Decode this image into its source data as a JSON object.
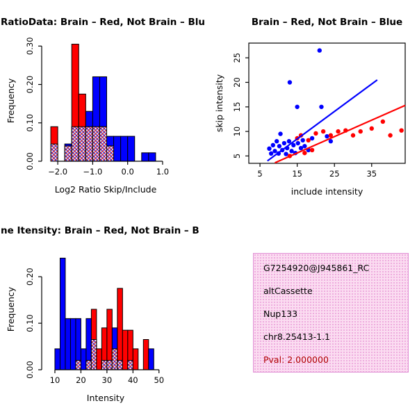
{
  "colors": {
    "brain": "#FF0000",
    "not_brain": "#0000FF",
    "axis": "#000000",
    "pval_text": "#B00000",
    "info_box_bg": "#FBDCF1",
    "info_box_border": "#E08FD4"
  },
  "chart_data": [
    {
      "id": "ratio_hist",
      "type": "histogram",
      "title": "RatioData: Brain – Red, Not Brain – Blu",
      "xlabel": "Log2 Ratio Skip/Include",
      "ylabel": "Frequency",
      "xlim": [
        -2.38,
        1.12
      ],
      "ylim": [
        0,
        0.315
      ],
      "xticks": [
        -2,
        -1,
        0,
        1
      ],
      "xtick_labels": [
        "−2.0",
        "−1.0",
        "0.0",
        "1.0"
      ],
      "yticks": [
        0,
        0.1,
        0.2,
        0.3
      ],
      "ytick_labels": [
        "0.00",
        "0.10",
        "0.20",
        "0.30"
      ],
      "bin_start": -2.2,
      "bin_width": 0.2,
      "series": [
        {
          "name": "Brain",
          "color": "#FF0000",
          "values": [
            0.09,
            0,
            0.04,
            0.305,
            0.175,
            0.09,
            0.09,
            0.09,
            0.04,
            0,
            0,
            0,
            0,
            0,
            0,
            0
          ]
        },
        {
          "name": "Not Brain",
          "color": "#0000FF",
          "values": [
            0.045,
            0,
            0.045,
            0.09,
            0.09,
            0.13,
            0.22,
            0.22,
            0.065,
            0.065,
            0.065,
            0.065,
            0,
            0.022,
            0.022,
            0
          ]
        }
      ],
      "overlap": "crosshatch"
    },
    {
      "id": "intensity_scatter",
      "type": "scatter",
      "title": "Brain – Red, Not Brain – Blue",
      "xlabel": "include intensity",
      "ylabel": "skip intensity",
      "xlim": [
        2,
        44
      ],
      "ylim": [
        3.5,
        28
      ],
      "xticks": [
        5,
        15,
        25,
        35
      ],
      "xtick_labels": [
        "5",
        "15",
        "25",
        "35"
      ],
      "yticks": [
        5,
        10,
        15,
        20,
        25
      ],
      "ytick_labels": [
        "5",
        "10",
        "15",
        "20",
        "25"
      ],
      "series": [
        {
          "name": "Not Brain",
          "color": "#0000FF",
          "points": [
            [
              7.5,
              6.5
            ],
            [
              8,
              5.5
            ],
            [
              8.5,
              7.2
            ],
            [
              9,
              6
            ],
            [
              9.5,
              8
            ],
            [
              10,
              5.5
            ],
            [
              10.2,
              7
            ],
            [
              10.5,
              9.5
            ],
            [
              11,
              6.2
            ],
            [
              11.5,
              7.6
            ],
            [
              12,
              5.4
            ],
            [
              12.3,
              6.6
            ],
            [
              12.8,
              8
            ],
            [
              13,
              20
            ],
            [
              13.5,
              6
            ],
            [
              14,
              7.2
            ],
            [
              14.5,
              5.6
            ],
            [
              15,
              15
            ],
            [
              15.2,
              7.6
            ],
            [
              16,
              6.6
            ],
            [
              16.5,
              8.2
            ],
            [
              17,
              7
            ],
            [
              18,
              6.2
            ],
            [
              19,
              8.6
            ],
            [
              21,
              26.5
            ],
            [
              21.5,
              15
            ],
            [
              23,
              9
            ],
            [
              24,
              8
            ]
          ]
        },
        {
          "name": "Brain",
          "color": "#FF0000",
          "points": [
            [
              13,
              5
            ],
            [
              15,
              8.6
            ],
            [
              16,
              9.2
            ],
            [
              17,
              5.6
            ],
            [
              18,
              8.2
            ],
            [
              19,
              6.2
            ],
            [
              20,
              9.6
            ],
            [
              22,
              10
            ],
            [
              24,
              9.2
            ],
            [
              26,
              10
            ],
            [
              28,
              10.2
            ],
            [
              30,
              9.2
            ],
            [
              32,
              10
            ],
            [
              35,
              10.6
            ],
            [
              38,
              12
            ],
            [
              40,
              9.2
            ],
            [
              43,
              10.2
            ]
          ]
        }
      ],
      "fit_lines": [
        {
          "name": "Not Brain fit",
          "color": "#0000FF",
          "x1": 7,
          "y1": 4,
          "x2": 36.5,
          "y2": 20.5
        },
        {
          "name": "Brain fit",
          "color": "#FF0000",
          "x1": 9,
          "y1": 3.6,
          "x2": 44,
          "y2": 15.3
        }
      ]
    },
    {
      "id": "intensity_hist",
      "type": "histogram",
      "title": "ne Itensity: Brain – Red, Not Brain – B",
      "xlabel": "Intensity",
      "ylabel": "Frequency",
      "xlim": [
        6,
        53
      ],
      "ylim": [
        0,
        0.26
      ],
      "xticks": [
        10,
        20,
        30,
        40,
        50
      ],
      "xtick_labels": [
        "10",
        "20",
        "30",
        "40",
        "50"
      ],
      "yticks": [
        0,
        0.1,
        0.2
      ],
      "ytick_labels": [
        "0.00",
        "0.10",
        "0.20"
      ],
      "bin_start": 10,
      "bin_width": 2,
      "series": [
        {
          "name": "Brain",
          "color": "#FF0000",
          "values": [
            0,
            0,
            0,
            0,
            0.02,
            0,
            0.02,
            0.13,
            0.045,
            0.09,
            0.13,
            0.045,
            0.175,
            0.085,
            0.085,
            0.045,
            0,
            0.065,
            0,
            0
          ]
        },
        {
          "name": "Not Brain",
          "color": "#0000FF",
          "values": [
            0.045,
            0.24,
            0.11,
            0.11,
            0.11,
            0.045,
            0.11,
            0.065,
            0,
            0.02,
            0.02,
            0.09,
            0.02,
            0,
            0.02,
            0,
            0,
            0,
            0.045,
            0
          ]
        }
      ],
      "overlap": "crosshatch"
    }
  ],
  "info_panel": {
    "lines": [
      "G7254920@J945861_RC",
      "altCassette",
      "Nup133",
      "chr8.25413-1.1"
    ],
    "pval_line": "Pval: 2.000000"
  }
}
